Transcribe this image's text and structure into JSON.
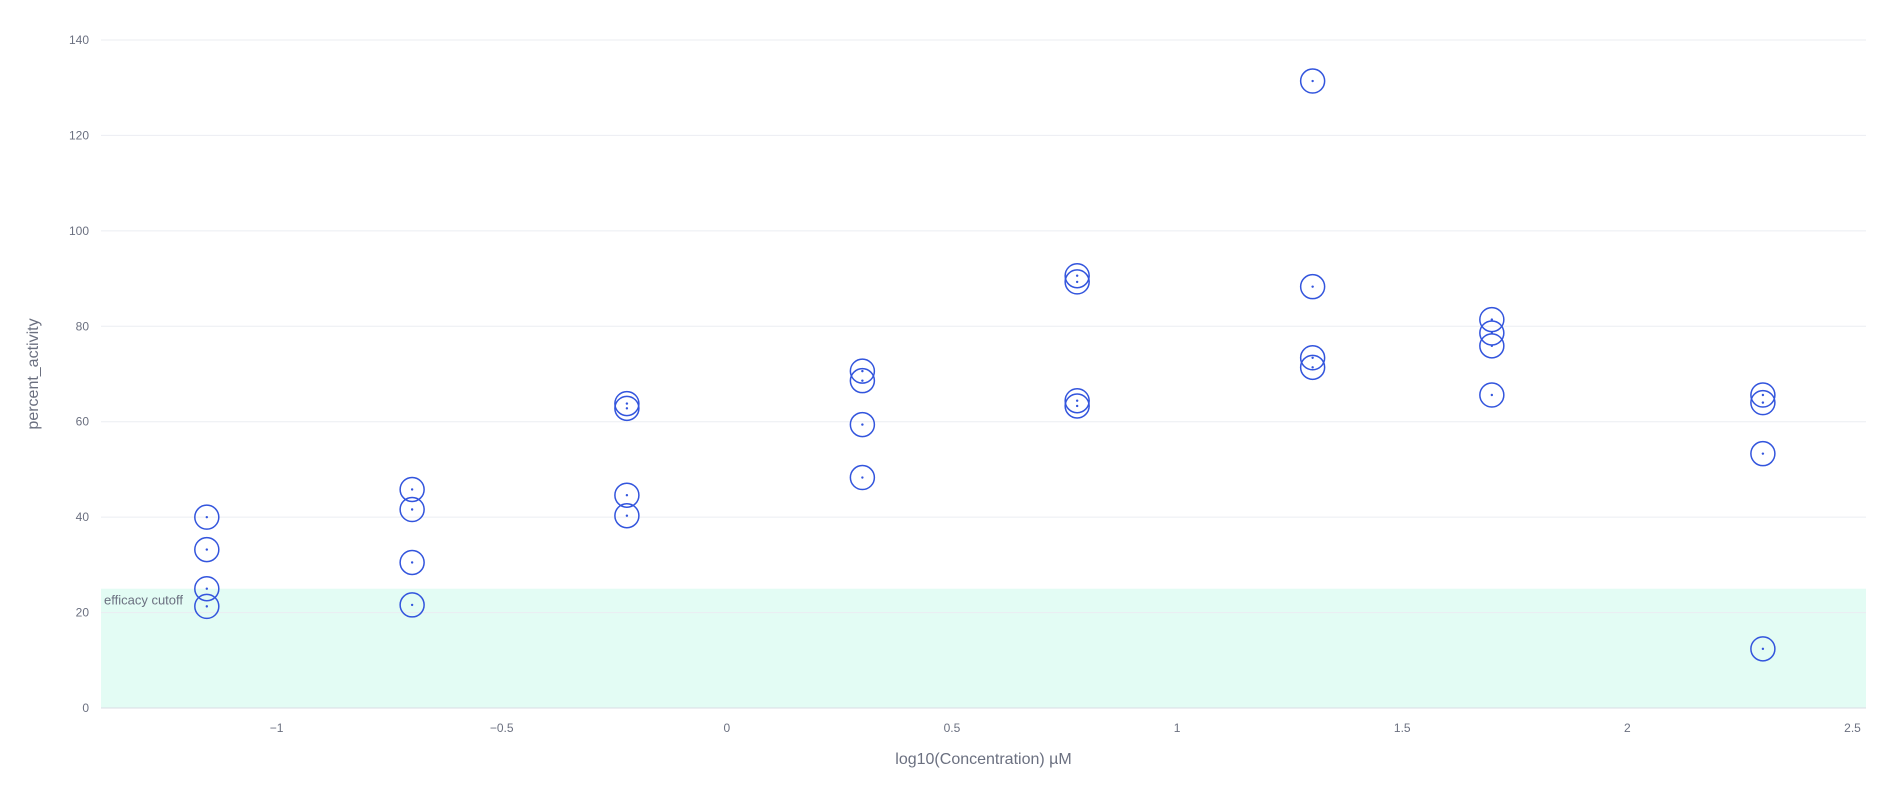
{
  "chart_data": {
    "type": "scatter",
    "title": "",
    "xlabel": "log10(Concentration) µM",
    "ylabel": "percent_activity",
    "xlim": [
      -1.39,
      2.53
    ],
    "ylim": [
      0,
      140
    ],
    "x_ticks": [
      -1,
      -0.5,
      0,
      0.5,
      1,
      1.5,
      2,
      2.5
    ],
    "x_tick_labels": [
      "−1",
      "−0.5",
      "0",
      "0.5",
      "1",
      "1.5",
      "2",
      "2.5"
    ],
    "y_ticks": [
      0,
      20,
      40,
      60,
      80,
      100,
      120,
      140
    ],
    "y_tick_labels": [
      "0",
      "20",
      "40",
      "60",
      "80",
      "100",
      "120",
      "140"
    ],
    "grid": true,
    "band": {
      "label": "efficacy cutoff",
      "y_from": 0,
      "y_to": 25,
      "color": "#e3fcf4"
    },
    "marker_color": "#3355dd",
    "series": [
      {
        "points": [
          {
            "x": -1.155,
            "y": 40.0
          },
          {
            "x": -1.155,
            "y": 33.2
          },
          {
            "x": -1.155,
            "y": 25.0
          },
          {
            "x": -1.155,
            "y": 21.3
          },
          {
            "x": -0.699,
            "y": 45.8
          },
          {
            "x": -0.699,
            "y": 41.6
          },
          {
            "x": -0.699,
            "y": 30.5
          },
          {
            "x": -0.699,
            "y": 21.6
          },
          {
            "x": -0.222,
            "y": 63.8
          },
          {
            "x": -0.222,
            "y": 62.8
          },
          {
            "x": -0.222,
            "y": 44.6
          },
          {
            "x": -0.222,
            "y": 40.3
          },
          {
            "x": 0.301,
            "y": 70.6
          },
          {
            "x": 0.301,
            "y": 68.6
          },
          {
            "x": 0.301,
            "y": 59.4
          },
          {
            "x": 0.301,
            "y": 48.3
          },
          {
            "x": 0.778,
            "y": 90.6
          },
          {
            "x": 0.778,
            "y": 89.3
          },
          {
            "x": 0.778,
            "y": 64.4
          },
          {
            "x": 0.778,
            "y": 63.3
          },
          {
            "x": 1.301,
            "y": 131.4
          },
          {
            "x": 1.301,
            "y": 88.3
          },
          {
            "x": 1.301,
            "y": 73.4
          },
          {
            "x": 1.301,
            "y": 71.4
          },
          {
            "x": 1.699,
            "y": 81.4
          },
          {
            "x": 1.699,
            "y": 78.6
          },
          {
            "x": 1.699,
            "y": 75.9
          },
          {
            "x": 1.699,
            "y": 65.6
          },
          {
            "x": 2.301,
            "y": 65.6
          },
          {
            "x": 2.301,
            "y": 64.0
          },
          {
            "x": 2.301,
            "y": 53.3
          },
          {
            "x": 2.301,
            "y": 12.4
          }
        ]
      }
    ]
  }
}
